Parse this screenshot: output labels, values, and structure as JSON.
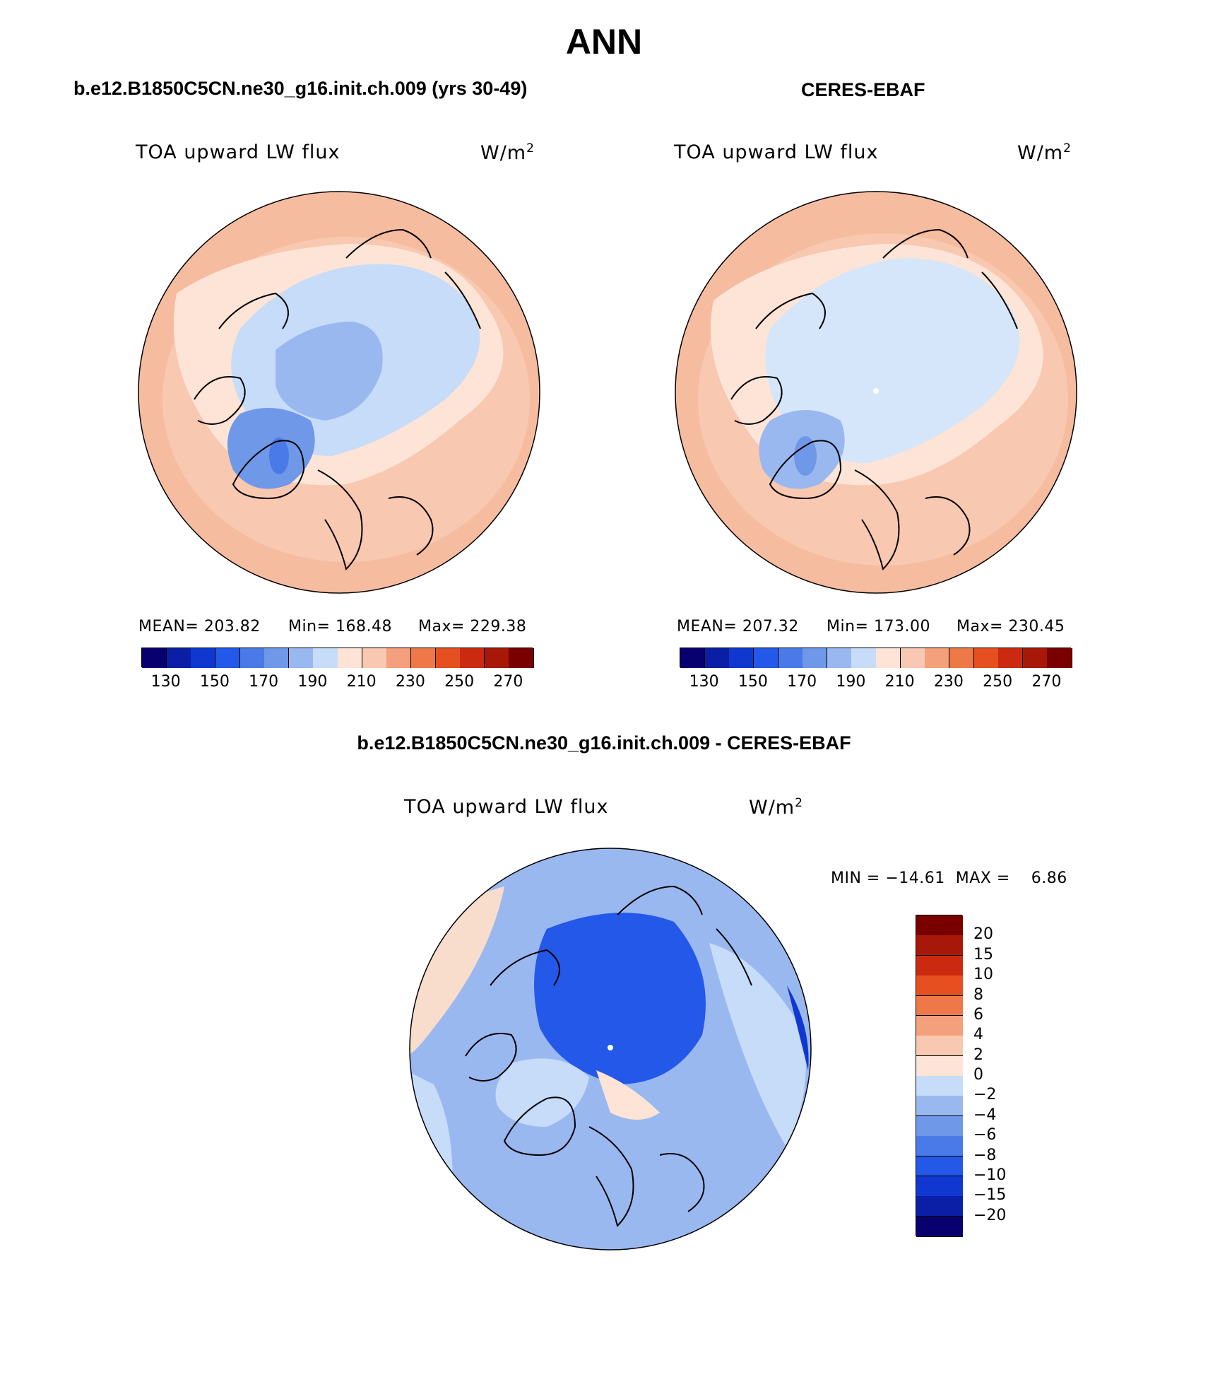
{
  "figure": {
    "title": "ANN",
    "colors": {
      "abs_scale": [
        "#08006e",
        "#0a1fa6",
        "#1038d0",
        "#2458e8",
        "#4a7ae8",
        "#7098e8",
        "#9ab8f0",
        "#c6dcf8",
        "#fde4d6",
        "#f8c8b0",
        "#f4a07c",
        "#ee7848",
        "#e65020",
        "#cc2a10",
        "#a81808",
        "#7a0000"
      ],
      "diff_scale": [
        "#08006e",
        "#0a1fa6",
        "#1038d0",
        "#2458e8",
        "#4a7ae8",
        "#7098e8",
        "#9ab8f0",
        "#c6dcf8",
        "#fde4d6",
        "#f8c8b0",
        "#f4a07c",
        "#ee7848",
        "#e65020",
        "#cc2a10",
        "#a81808",
        "#7a0000"
      ]
    }
  },
  "panel_model": {
    "title": "b.e12.B1850C5CN.ne30_g16.init.ch.009 (yrs 30-49)",
    "variable": "TOA upward LW flux",
    "units": "W/m",
    "units_sup": "2",
    "stats": {
      "mean": "MEAN= 203.82",
      "min": "Min= 168.48",
      "max": "Max= 229.38"
    },
    "colorbar_labels": [
      "130",
      "150",
      "170",
      "190",
      "210",
      "230",
      "250",
      "270"
    ]
  },
  "panel_obs": {
    "title": "CERES-EBAF",
    "variable": "TOA upward LW flux",
    "units": "W/m",
    "units_sup": "2",
    "stats": {
      "mean": "MEAN= 207.32",
      "min": "Min= 173.00",
      "max": "Max= 230.45"
    },
    "colorbar_labels": [
      "130",
      "150",
      "170",
      "190",
      "210",
      "230",
      "250",
      "270"
    ]
  },
  "panel_diff": {
    "title": "b.e12.B1850C5CN.ne30_g16.init.ch.009 - CERES-EBAF",
    "variable": "TOA upward LW flux",
    "units": "W/m",
    "units_sup": "2",
    "minmax": "MIN = −14.61  MAX =    6.86",
    "colorbar_labels": [
      "20",
      "15",
      "10",
      "8",
      "6",
      "4",
      "2",
      "0",
      "−2",
      "−4",
      "−6",
      "−8",
      "−10",
      "−15",
      "−20"
    ]
  }
}
